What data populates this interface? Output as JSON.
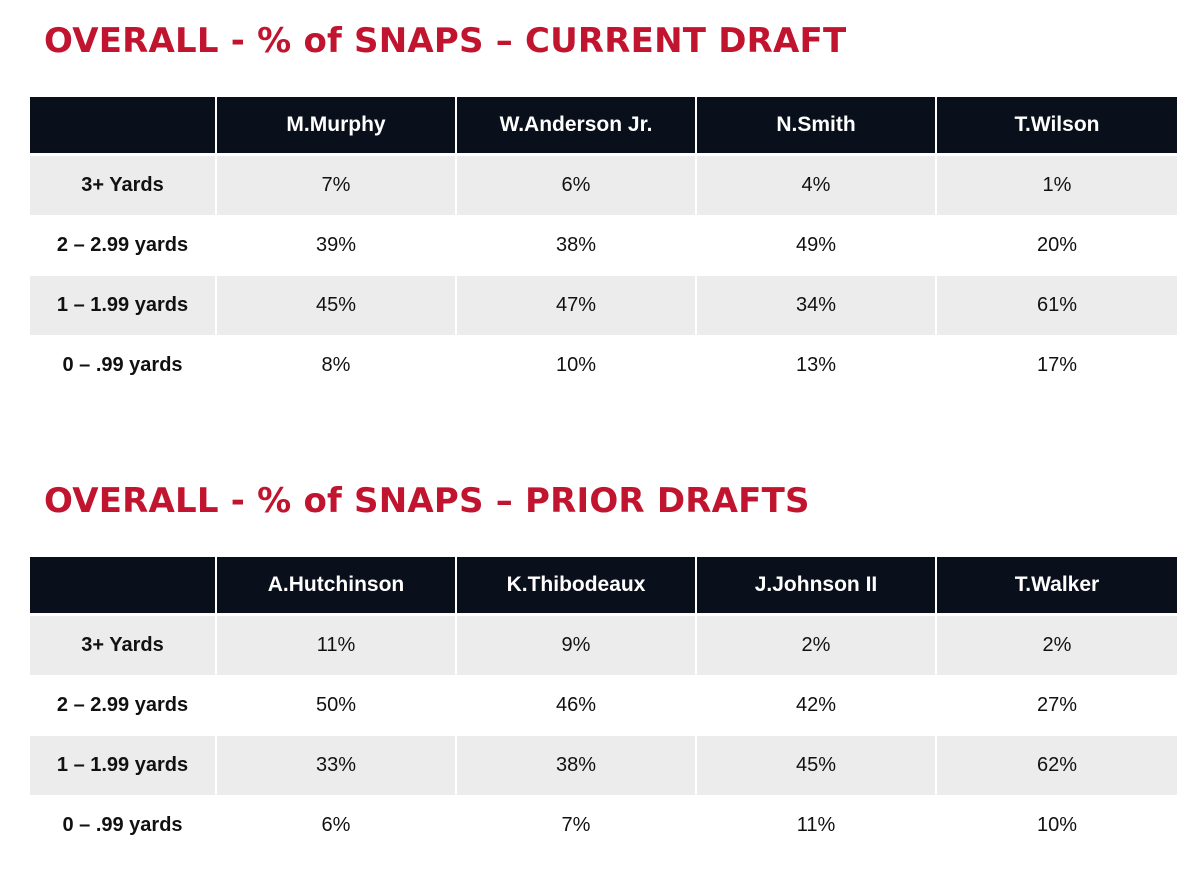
{
  "chart_data": [
    {
      "type": "table",
      "title": "OVERALL - % of SNAPS – CURRENT DRAFT",
      "columns": [
        "",
        "M.Murphy",
        "W.Anderson Jr.",
        "N.Smith",
        "T.Wilson"
      ],
      "rows": [
        {
          "label": "3+ Yards",
          "values": [
            "7%",
            "6%",
            "4%",
            "1%"
          ]
        },
        {
          "label": "2 – 2.99 yards",
          "values": [
            "39%",
            "38%",
            "49%",
            "20%"
          ]
        },
        {
          "label": "1 – 1.99 yards",
          "values": [
            "45%",
            "47%",
            "34%",
            "61%"
          ]
        },
        {
          "label": "0 – .99 yards",
          "values": [
            "8%",
            "10%",
            "13%",
            "17%"
          ]
        }
      ]
    },
    {
      "type": "table",
      "title": "OVERALL - % of SNAPS – PRIOR DRAFTS",
      "columns": [
        "",
        "A.Hutchinson",
        "K.Thibodeaux",
        "J.Johnson II",
        "T.Walker"
      ],
      "rows": [
        {
          "label": "3+ Yards",
          "values": [
            "11%",
            "9%",
            "2%",
            "2%"
          ]
        },
        {
          "label": "2 – 2.99 yards",
          "values": [
            "50%",
            "46%",
            "42%",
            "27%"
          ]
        },
        {
          "label": "1 – 1.99 yards",
          "values": [
            "33%",
            "38%",
            "45%",
            "62%"
          ]
        },
        {
          "label": "0 – .99 yards",
          "values": [
            "6%",
            "7%",
            "11%",
            "10%"
          ]
        }
      ]
    }
  ],
  "colors": {
    "title": "#c0142f",
    "header_bg": "#0a101b",
    "header_text": "#ffffff",
    "row_shade": "#ececec",
    "row_plain": "#ffffff"
  }
}
